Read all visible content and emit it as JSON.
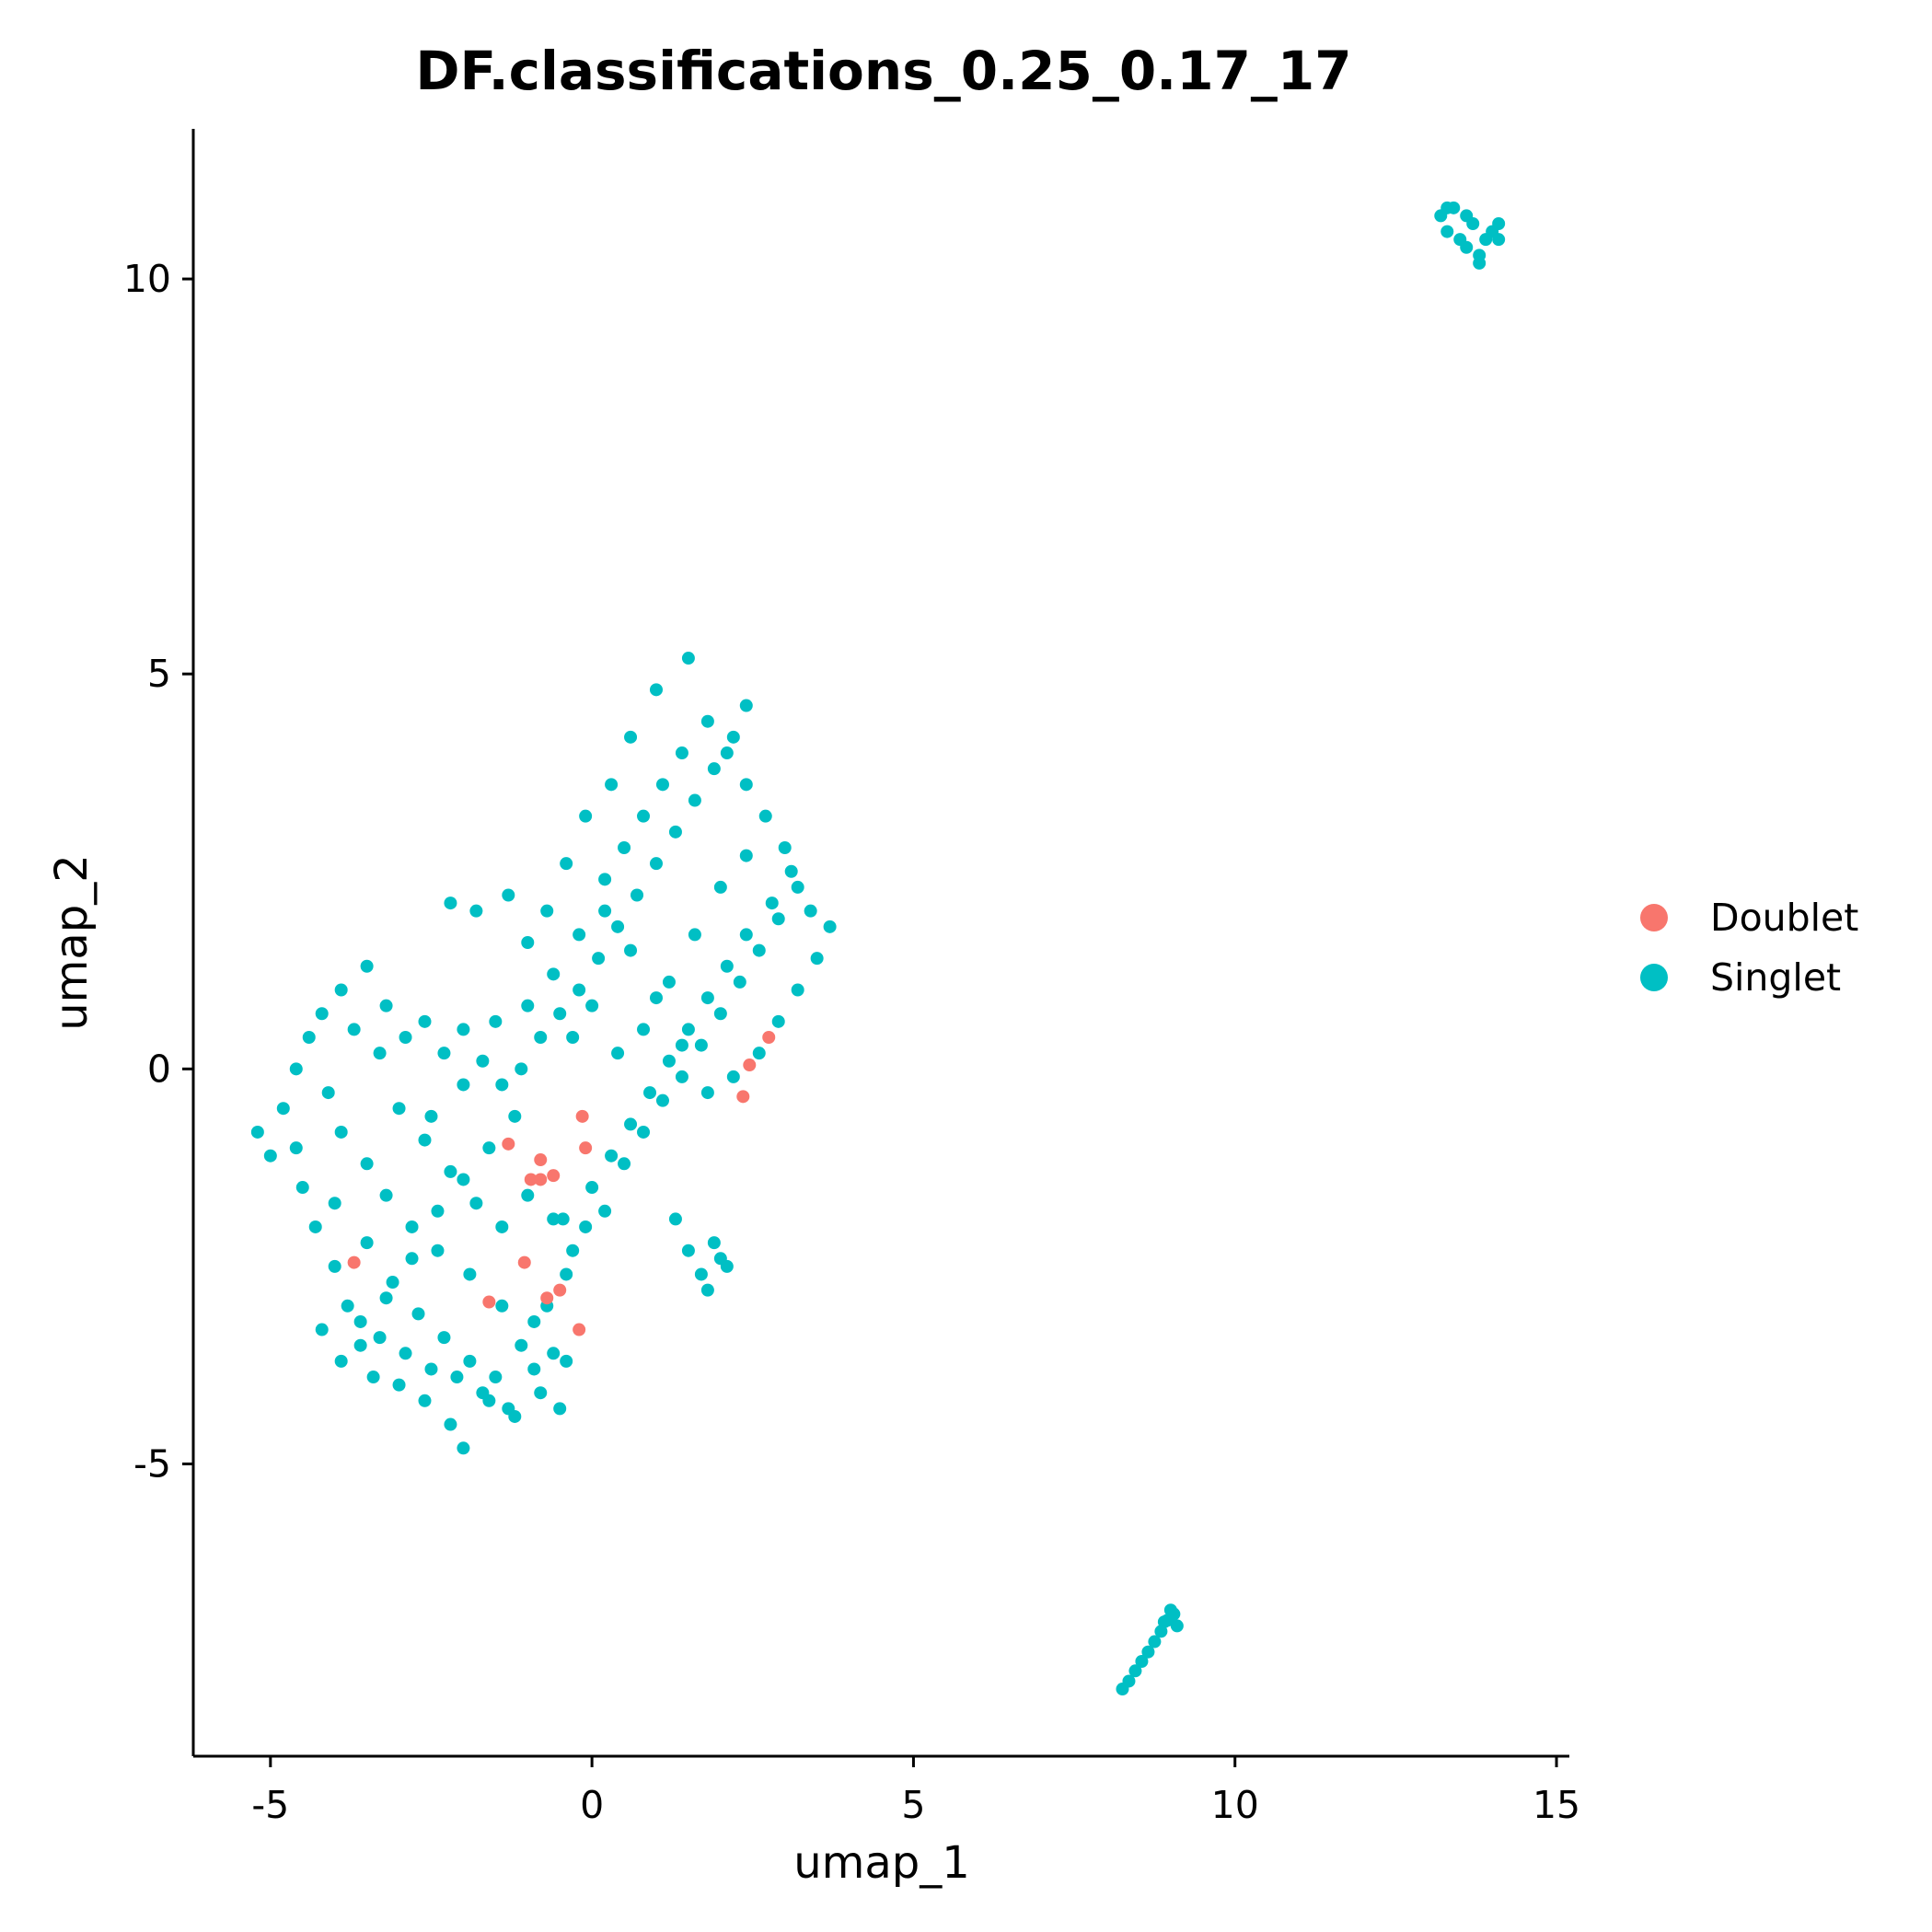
{
  "chart_data": {
    "type": "scatter",
    "title": "DF.classifications_0.25_0.17_17",
    "xlabel": "umap_1",
    "ylabel": "umap_2",
    "xlim": [
      -6.2,
      15.2
    ],
    "ylim": [
      -8.7,
      11.9
    ],
    "x_ticks": [
      -5,
      0,
      5,
      10,
      15
    ],
    "x_tick_labels": [
      "-5",
      "0",
      "5",
      "10",
      "15"
    ],
    "y_ticks": [
      -5,
      0,
      5,
      10
    ],
    "y_tick_labels": [
      "-5",
      "0",
      "5",
      "10"
    ],
    "grid": false,
    "legend_position": "right",
    "series": [
      {
        "name": "Doublet",
        "color": "#F8766D",
        "points": [
          [
            2.45,
            0.05
          ],
          [
            2.75,
            0.4
          ],
          [
            2.35,
            -0.35
          ],
          [
            -0.15,
            -0.6
          ],
          [
            -0.1,
            -1.0
          ],
          [
            -1.3,
            -0.95
          ],
          [
            -0.8,
            -1.15
          ],
          [
            -0.95,
            -1.4
          ],
          [
            -0.6,
            -1.35
          ],
          [
            -0.8,
            -1.4
          ],
          [
            -3.7,
            -2.45
          ],
          [
            -1.05,
            -2.45
          ],
          [
            -1.6,
            -2.95
          ],
          [
            -0.7,
            -2.9
          ],
          [
            -0.5,
            -2.8
          ],
          [
            -0.2,
            -3.3
          ]
        ]
      },
      {
        "name": "Singlet",
        "color": "#00BFC4",
        "clusters": [
          {
            "points": [
              [
                -5.2,
                -0.8
              ],
              [
                -5.0,
                -1.1
              ],
              [
                -4.8,
                -0.5
              ],
              [
                -4.6,
                0.0
              ],
              [
                -4.4,
                0.4
              ],
              [
                -4.2,
                0.7
              ],
              [
                -3.9,
                1.0
              ],
              [
                -3.5,
                1.3
              ],
              [
                -3.2,
                0.8
              ],
              [
                -2.9,
                0.4
              ],
              [
                -2.6,
                0.6
              ],
              [
                -2.3,
                0.2
              ],
              [
                -2.0,
                0.5
              ],
              [
                -1.7,
                0.1
              ],
              [
                -1.4,
                -0.2
              ],
              [
                -1.1,
                0.0
              ],
              [
                -0.8,
                0.4
              ],
              [
                -0.5,
                0.7
              ],
              [
                -0.2,
                1.0
              ],
              [
                0.1,
                1.4
              ],
              [
                0.4,
                1.8
              ],
              [
                0.7,
                2.2
              ],
              [
                1.0,
                2.6
              ],
              [
                1.3,
                3.0
              ],
              [
                1.6,
                3.4
              ],
              [
                1.9,
                3.8
              ],
              [
                2.2,
                4.2
              ],
              [
                2.4,
                4.6
              ],
              [
                1.5,
                5.2
              ],
              [
                1.0,
                4.8
              ],
              [
                0.6,
                4.2
              ],
              [
                0.3,
                3.6
              ],
              [
                -0.1,
                3.2
              ],
              [
                -0.4,
                2.6
              ],
              [
                -0.7,
                2.0
              ],
              [
                -1.0,
                1.6
              ],
              [
                -1.3,
                2.2
              ],
              [
                -1.8,
                2.0
              ],
              [
                -2.2,
                2.1
              ],
              [
                -4.5,
                -1.5
              ],
              [
                -4.3,
                -2.0
              ],
              [
                -4.0,
                -2.5
              ],
              [
                -3.8,
                -3.0
              ],
              [
                -3.6,
                -3.5
              ],
              [
                -3.4,
                -3.9
              ],
              [
                -3.0,
                -4.0
              ],
              [
                -2.6,
                -4.2
              ],
              [
                -2.2,
                -4.5
              ],
              [
                -2.0,
                -4.8
              ],
              [
                -1.6,
                -4.2
              ],
              [
                -1.2,
                -4.4
              ],
              [
                -0.8,
                -4.1
              ],
              [
                -0.5,
                -4.3
              ],
              [
                -0.6,
                -3.6
              ],
              [
                -0.9,
                -3.2
              ],
              [
                -1.4,
                -3.0
              ],
              [
                -1.9,
                -2.6
              ],
              [
                -2.4,
                -2.3
              ],
              [
                -2.8,
                -2.0
              ],
              [
                -3.2,
                -1.6
              ],
              [
                -3.5,
                -1.2
              ],
              [
                -3.9,
                -0.8
              ],
              [
                -4.1,
                -0.3
              ],
              [
                -3.0,
                -0.5
              ],
              [
                -2.6,
                -0.9
              ],
              [
                -2.2,
                -1.3
              ],
              [
                -1.8,
                -1.7
              ],
              [
                -1.4,
                -2.0
              ],
              [
                -1.0,
                -1.6
              ],
              [
                -0.6,
                -1.9
              ],
              [
                -0.3,
                -2.3
              ],
              [
                0.0,
                -1.5
              ],
              [
                0.3,
                -1.1
              ],
              [
                0.6,
                -0.7
              ],
              [
                0.9,
                -0.3
              ],
              [
                1.2,
                0.1
              ],
              [
                1.5,
                0.5
              ],
              [
                1.8,
                0.9
              ],
              [
                2.1,
                1.3
              ],
              [
                2.4,
                1.7
              ],
              [
                2.8,
                2.1
              ],
              [
                3.1,
                2.5
              ],
              [
                3.4,
                2.0
              ],
              [
                3.7,
                1.8
              ],
              [
                3.5,
                1.4
              ],
              [
                3.2,
                1.0
              ],
              [
                2.9,
                0.6
              ],
              [
                2.6,
                0.2
              ],
              [
                2.2,
                -0.1
              ],
              [
                1.8,
                -0.3
              ],
              [
                1.4,
                0.3
              ],
              [
                1.0,
                0.9
              ],
              [
                0.6,
                1.5
              ],
              [
                0.2,
                2.0
              ],
              [
                -0.2,
                1.7
              ],
              [
                -0.6,
                1.2
              ],
              [
                -1.0,
                0.8
              ],
              [
                -1.5,
                0.6
              ],
              [
                -2.0,
                -0.2
              ],
              [
                -2.5,
                -0.6
              ],
              [
                -3.3,
                0.2
              ],
              [
                -3.7,
                0.5
              ],
              [
                -4.6,
                -1.0
              ],
              [
                -4.0,
                -1.7
              ],
              [
                -3.5,
                -2.2
              ],
              [
                -3.1,
                -2.7
              ],
              [
                -2.7,
                -3.1
              ],
              [
                -2.3,
                -3.4
              ],
              [
                -1.9,
                -3.7
              ],
              [
                -1.5,
                -3.9
              ],
              [
                -1.1,
                -3.5
              ],
              [
                -0.7,
                -3.0
              ],
              [
                -0.4,
                -2.6
              ],
              [
                -0.1,
                -2.0
              ],
              [
                0.2,
                -1.8
              ],
              [
                0.5,
                -1.2
              ],
              [
                0.8,
                -0.8
              ],
              [
                1.1,
                -0.4
              ],
              [
                1.4,
                -0.1
              ],
              [
                1.7,
                0.3
              ],
              [
                2.0,
                0.7
              ],
              [
                2.3,
                1.1
              ],
              [
                2.6,
                1.5
              ],
              [
                2.9,
                1.9
              ],
              [
                3.2,
                2.3
              ],
              [
                3.0,
                2.8
              ],
              [
                2.7,
                3.2
              ],
              [
                2.4,
                3.6
              ],
              [
                2.1,
                4.0
              ],
              [
                1.8,
                4.4
              ],
              [
                1.4,
                4.0
              ],
              [
                1.1,
                3.6
              ],
              [
                0.8,
                3.2
              ],
              [
                0.5,
                2.8
              ],
              [
                0.2,
                2.4
              ],
              [
                -0.3,
                0.4
              ],
              [
                0.0,
                0.8
              ],
              [
                0.4,
                0.2
              ],
              [
                0.8,
                0.5
              ],
              [
                1.2,
                1.1
              ],
              [
                1.6,
                1.7
              ],
              [
                2.0,
                2.3
              ],
              [
                2.4,
                2.7
              ],
              [
                -1.2,
                -0.6
              ],
              [
                -1.6,
                -1.0
              ],
              [
                -2.0,
                -1.4
              ],
              [
                -2.4,
                -1.8
              ],
              [
                -2.8,
                -2.4
              ],
              [
                -3.2,
                -2.9
              ],
              [
                -3.6,
                -3.2
              ],
              [
                -4.2,
                -3.3
              ],
              [
                -3.9,
                -3.7
              ],
              [
                -3.3,
                -3.4
              ],
              [
                -2.9,
                -3.6
              ],
              [
                -2.5,
                -3.8
              ],
              [
                -2.1,
                -3.9
              ],
              [
                -1.7,
                -4.1
              ],
              [
                -1.3,
                -4.3
              ],
              [
                -0.9,
                -3.8
              ],
              [
                -0.4,
                -3.7
              ]
            ]
          },
          {
            "points": [
              [
                -0.45,
                -1.9
              ],
              [
                1.3,
                -1.9
              ],
              [
                1.5,
                -2.3
              ],
              [
                1.7,
                -2.6
              ],
              [
                1.9,
                -2.2
              ],
              [
                2.1,
                -2.5
              ],
              [
                1.8,
                -2.8
              ],
              [
                2.0,
                -2.4
              ]
            ]
          },
          {
            "points": [
              [
                13.2,
                10.8
              ],
              [
                13.3,
                10.6
              ],
              [
                13.4,
                10.9
              ],
              [
                13.5,
                10.5
              ],
              [
                13.6,
                10.4
              ],
              [
                13.7,
                10.7
              ],
              [
                13.8,
                10.3
              ],
              [
                13.9,
                10.5
              ],
              [
                14.0,
                10.6
              ],
              [
                14.1,
                10.7
              ],
              [
                13.3,
                10.9
              ],
              [
                13.6,
                10.8
              ],
              [
                13.8,
                10.2
              ],
              [
                14.1,
                10.5
              ]
            ]
          },
          {
            "points": [
              [
                8.25,
                -7.85
              ],
              [
                8.35,
                -7.75
              ],
              [
                8.45,
                -7.62
              ],
              [
                8.55,
                -7.5
              ],
              [
                8.65,
                -7.38
              ],
              [
                8.75,
                -7.25
              ],
              [
                8.85,
                -7.12
              ],
              [
                8.95,
                -6.98
              ],
              [
                9.05,
                -6.9
              ],
              [
                9.1,
                -7.05
              ],
              [
                8.9,
                -7.0
              ],
              [
                9.0,
                -6.85
              ]
            ]
          }
        ]
      }
    ]
  }
}
